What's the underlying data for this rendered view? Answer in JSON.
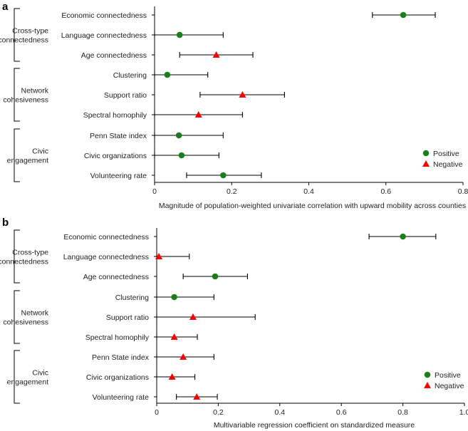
{
  "chart_data": [
    {
      "type": "scatter",
      "panel": "a",
      "xlabel": "Magnitude of population-weighted univariate correlation with upward mobility across counties",
      "xlim": [
        0,
        0.8
      ],
      "xticks": [
        "0",
        "0.2",
        "0.4",
        "0.6",
        "0.8"
      ],
      "tick_values": [
        0,
        0.2,
        0.4,
        0.6,
        0.8
      ],
      "groups": [
        {
          "label_lines": [
            "Cross-type",
            "connectedness"
          ],
          "start": 0,
          "end": 2
        },
        {
          "label_lines": [
            "Network",
            "cohesiveness"
          ],
          "start": 3,
          "end": 5
        },
        {
          "label_lines": [
            "Civic",
            "engagement"
          ],
          "start": 6,
          "end": 8
        }
      ],
      "items": [
        {
          "label": "Economic connectedness",
          "value": 0.645,
          "lo": 0.565,
          "hi": 0.728,
          "sign": "positive"
        },
        {
          "label": "Language connectedness",
          "value": 0.065,
          "lo": 0.0,
          "hi": 0.178,
          "sign": "positive"
        },
        {
          "label": "Age connectedness",
          "value": 0.16,
          "lo": 0.065,
          "hi": 0.255,
          "sign": "negative"
        },
        {
          "label": "Clustering",
          "value": 0.033,
          "lo": 0.0,
          "hi": 0.138,
          "sign": "positive"
        },
        {
          "label": "Support ratio",
          "value": 0.228,
          "lo": 0.118,
          "hi": 0.337,
          "sign": "negative"
        },
        {
          "label": "Spectral homophily",
          "value": 0.114,
          "lo": 0.0,
          "hi": 0.228,
          "sign": "negative"
        },
        {
          "label": "Penn State index",
          "value": 0.063,
          "lo": 0.0,
          "hi": 0.178,
          "sign": "positive"
        },
        {
          "label": "Civic organizations",
          "value": 0.07,
          "lo": 0.0,
          "hi": 0.167,
          "sign": "positive"
        },
        {
          "label": "Volunteering rate",
          "value": 0.178,
          "lo": 0.083,
          "hi": 0.277,
          "sign": "positive"
        }
      ],
      "legend": {
        "position": "bottom-right",
        "positive": "Positive",
        "negative": "Negative"
      }
    },
    {
      "type": "scatter",
      "panel": "b",
      "xlabel": "Multivariable regression coefficient on standardized measure",
      "xlim": [
        0,
        1.0
      ],
      "xticks": [
        "0",
        "0.2",
        "0.4",
        "0.6",
        "0.8",
        "1.0"
      ],
      "tick_values": [
        0,
        0.2,
        0.4,
        0.6,
        0.8,
        1.0
      ],
      "groups": [
        {
          "label_lines": [
            "Cross-type",
            "connectedness"
          ],
          "start": 0,
          "end": 2
        },
        {
          "label_lines": [
            "Network",
            "cohesiveness"
          ],
          "start": 3,
          "end": 5
        },
        {
          "label_lines": [
            "Civic",
            "engagement"
          ],
          "start": 6,
          "end": 8
        }
      ],
      "items": [
        {
          "label": "Economic connectedness",
          "value": 0.8,
          "lo": 0.69,
          "hi": 0.907,
          "sign": "positive"
        },
        {
          "label": "Language connectedness",
          "value": 0.007,
          "lo": 0.0,
          "hi": 0.106,
          "sign": "negative"
        },
        {
          "label": "Age connectedness",
          "value": 0.19,
          "lo": 0.086,
          "hi": 0.295,
          "sign": "positive"
        },
        {
          "label": "Clustering",
          "value": 0.057,
          "lo": 0.0,
          "hi": 0.186,
          "sign": "positive"
        },
        {
          "label": "Support ratio",
          "value": 0.118,
          "lo": 0.0,
          "hi": 0.32,
          "sign": "negative"
        },
        {
          "label": "Spectral homophily",
          "value": 0.057,
          "lo": 0.0,
          "hi": 0.132,
          "sign": "negative"
        },
        {
          "label": "Penn State index",
          "value": 0.086,
          "lo": 0.0,
          "hi": 0.186,
          "sign": "negative"
        },
        {
          "label": "Civic organizations",
          "value": 0.05,
          "lo": 0.0,
          "hi": 0.124,
          "sign": "negative"
        },
        {
          "label": "Volunteering rate",
          "value": 0.13,
          "lo": 0.064,
          "hi": 0.197,
          "sign": "negative"
        }
      ],
      "legend": {
        "position": "bottom-right",
        "positive": "Positive",
        "negative": "Negative"
      }
    }
  ],
  "colors": {
    "positive": "#1a7f1a",
    "negative": "#ff0000"
  }
}
